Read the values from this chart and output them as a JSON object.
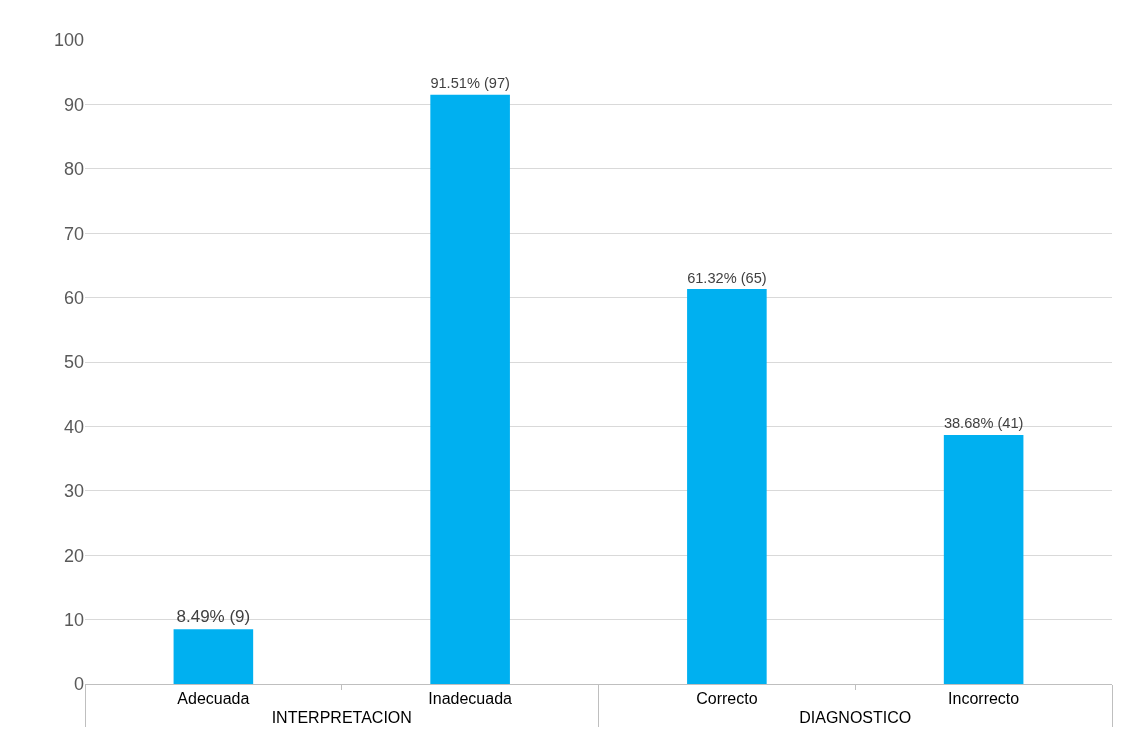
{
  "chart_data": {
    "type": "bar",
    "categories": [
      "Adecuada",
      "Inadecuada",
      "Correcto",
      "Incorrecto"
    ],
    "values": [
      8.49,
      91.51,
      61.32,
      38.68
    ],
    "value_labels": [
      "8.49% (9)",
      "91.51% (97)",
      "61.32% (65)",
      "38.68% (41)"
    ],
    "color": "#00b0f0",
    "annotations": [
      "INTERPRETACION",
      "DIAGNOSTICO"
    ],
    "ylim": [
      0,
      100
    ],
    "yticks": [
      0,
      10,
      20,
      30,
      40,
      50,
      60,
      70,
      80,
      90,
      100
    ],
    "grid": "y",
    "legend": false
  }
}
